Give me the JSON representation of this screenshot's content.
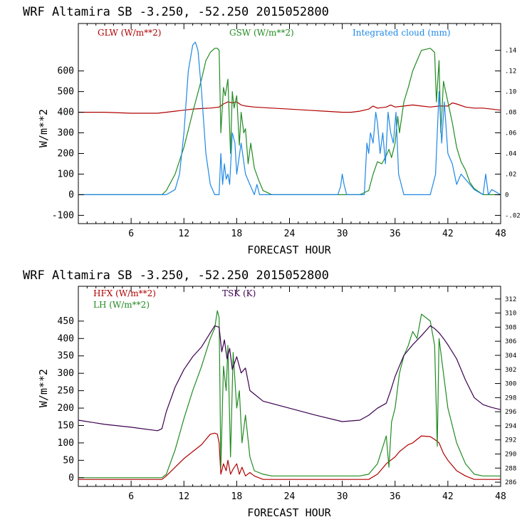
{
  "colors": {
    "glw": "#b00000",
    "gsw": "#228b22",
    "cloud": "#1e88e5",
    "hfx": "#b00000",
    "lh": "#228b22",
    "tsk": "#3c0050"
  },
  "chart_data": [
    {
      "type": "line",
      "title": "WRF  Altamira  SB  -3.250, -52.250  2015052800",
      "xlabel": "FORECAST HOUR",
      "ylabel": "W/m**2",
      "xlim": [
        0,
        48
      ],
      "ylim": [
        -140,
        830
      ],
      "x_ticks": [
        6,
        12,
        18,
        24,
        30,
        36,
        42,
        48
      ],
      "y_ticks": [
        -100,
        0,
        100,
        200,
        300,
        400,
        500,
        600
      ],
      "y2lim": [
        -0.028,
        0.166
      ],
      "y2_ticks": [
        -0.02,
        0,
        0.02,
        0.04,
        0.06,
        0.08,
        0.1,
        0.12,
        0.14
      ],
      "y2_tick_labels": [
        "-.02",
        "0",
        ".02",
        ".04",
        ".06",
        ".08",
        ".10",
        ".12",
        ".14"
      ],
      "legend": [
        {
          "label": "GLW (W/m**2)",
          "color_key": "glw"
        },
        {
          "label": "GSW (W/m**2)",
          "color_key": "gsw"
        },
        {
          "label": "Integrated cloud (mm)",
          "color_key": "cloud"
        }
      ],
      "series": [
        {
          "name": "GLW",
          "color_key": "glw",
          "axis": "left",
          "x": [
            0,
            3,
            6,
            9,
            10,
            11,
            12,
            13,
            14,
            15,
            16,
            16.5,
            17,
            17.5,
            18,
            18.5,
            19,
            20,
            22,
            24,
            26,
            28,
            30,
            31,
            32,
            33,
            33.5,
            34,
            35,
            35.5,
            36,
            37,
            38,
            39,
            40,
            41,
            42,
            42.5,
            43,
            44,
            45,
            46,
            47,
            48
          ],
          "values": [
            400,
            400,
            395,
            395,
            400,
            405,
            410,
            415,
            418,
            420,
            425,
            440,
            450,
            445,
            450,
            435,
            430,
            425,
            420,
            415,
            410,
            405,
            400,
            400,
            405,
            415,
            430,
            420,
            425,
            435,
            425,
            430,
            435,
            430,
            425,
            430,
            430,
            445,
            440,
            425,
            420,
            420,
            415,
            410
          ]
        },
        {
          "name": "GSW",
          "color_key": "gsw",
          "axis": "left",
          "x": [
            0,
            9,
            9.5,
            10,
            11,
            12,
            13,
            14,
            14.5,
            15,
            15.5,
            15.8,
            16,
            16.2,
            16.5,
            16.7,
            17,
            17.3,
            17.5,
            17.7,
            18,
            18.3,
            18.5,
            18.8,
            19,
            19.3,
            19.6,
            20,
            20.5,
            21,
            22,
            30,
            32,
            33,
            33.5,
            34,
            34.5,
            35,
            35.3,
            35.6,
            36,
            36.3,
            36.5,
            37,
            37.5,
            38,
            38.5,
            39,
            40,
            40.5,
            40.7,
            41,
            41.2,
            41.5,
            42,
            42.5,
            43,
            43.5,
            44,
            44.5,
            45,
            46,
            48
          ],
          "values": [
            0,
            0,
            0,
            20,
            100,
            230,
            400,
            560,
            650,
            690,
            710,
            710,
            700,
            300,
            520,
            480,
            560,
            200,
            500,
            420,
            480,
            240,
            400,
            300,
            320,
            150,
            250,
            130,
            70,
            20,
            0,
            0,
            0,
            20,
            100,
            160,
            150,
            190,
            220,
            180,
            250,
            380,
            300,
            450,
            520,
            600,
            650,
            700,
            710,
            690,
            450,
            650,
            300,
            550,
            450,
            350,
            230,
            160,
            120,
            60,
            30,
            0,
            0
          ]
        },
        {
          "name": "Integrated cloud",
          "color_key": "cloud",
          "axis": "right",
          "x": [
            0,
            10,
            11,
            11.5,
            12,
            12.5,
            13,
            13.3,
            13.6,
            14,
            14.5,
            15,
            15.5,
            16,
            16.2,
            16.4,
            16.6,
            16.8,
            17,
            17.2,
            17.5,
            17.8,
            18,
            18.5,
            19,
            19.5,
            20,
            20.3,
            20.6,
            21,
            29.5,
            29.8,
            30,
            30.2,
            30.5,
            32.5,
            32.8,
            33,
            33.2,
            33.5,
            33.8,
            34,
            34.3,
            34.6,
            34.9,
            35.2,
            35.5,
            35.8,
            36.1,
            36.4,
            36.7,
            37,
            39,
            40,
            40.3,
            40.6,
            40.8,
            41,
            41.3,
            41.6,
            42,
            42.5,
            43,
            43.5,
            44,
            44.5,
            45,
            46,
            46.3,
            46.6,
            47,
            48
          ],
          "values": [
            0,
            0,
            0.005,
            0.02,
            0.06,
            0.12,
            0.145,
            0.148,
            0.14,
            0.1,
            0.04,
            0.01,
            0,
            0,
            0.04,
            0.01,
            0.03,
            0.015,
            0.02,
            0.01,
            0.06,
            0.05,
            0.02,
            0.05,
            0.02,
            0.01,
            0,
            0.01,
            0,
            0,
            0,
            0.008,
            0.02,
            0.01,
            0,
            0,
            0.05,
            0.04,
            0.06,
            0.05,
            0.08,
            0.07,
            0.04,
            0.06,
            0.03,
            0.08,
            0.06,
            0.05,
            0.08,
            0.02,
            0.01,
            0,
            0,
            0,
            0.01,
            0.02,
            0.06,
            0.1,
            0.05,
            0.09,
            0.04,
            0.03,
            0.01,
            0.02,
            0.015,
            0.01,
            0.005,
            0,
            0.02,
            0,
            0.005,
            0
          ]
        }
      ]
    },
    {
      "type": "line",
      "title": "WRF  Altamira  SB  -3.250, -52.250  2015052800",
      "xlabel": "FORECAST HOUR",
      "ylabel": "W/m**2",
      "xlim": [
        0,
        48
      ],
      "ylim": [
        -25,
        550
      ],
      "x_ticks": [
        6,
        12,
        18,
        24,
        30,
        36,
        42,
        48
      ],
      "y_ticks": [
        0,
        50,
        100,
        150,
        200,
        250,
        300,
        350,
        400,
        450
      ],
      "y2lim": [
        285.4,
        313.8
      ],
      "y2_ticks": [
        286,
        288,
        290,
        292,
        294,
        296,
        298,
        300,
        302,
        304,
        306,
        308,
        310,
        312
      ],
      "y2_tick_labels": [
        "286",
        "288",
        "290",
        "292",
        "294",
        "296",
        "298",
        "300",
        "302",
        "304",
        "306",
        "308",
        "310",
        "312"
      ],
      "legend": [
        {
          "label": "HFX (W/m**2)",
          "color_key": "hfx"
        },
        {
          "label": "LH  (W/m**2)",
          "color_key": "lh"
        },
        {
          "label": "TSK (K)",
          "color_key": "tsk"
        }
      ],
      "series": [
        {
          "name": "HFX",
          "color_key": "hfx",
          "axis": "left",
          "x": [
            0,
            9,
            9.5,
            10,
            11,
            12,
            13,
            14,
            14.5,
            15,
            15.5,
            15.8,
            16,
            16.2,
            16.5,
            16.8,
            17,
            17.3,
            17.6,
            18,
            18.3,
            18.6,
            19,
            19.5,
            20,
            21,
            22,
            30,
            33,
            34,
            34.5,
            35,
            35.5,
            36,
            36.5,
            37,
            37.5,
            38,
            38.5,
            39,
            40,
            40.5,
            41,
            41.5,
            42,
            43,
            44,
            45,
            46,
            48
          ],
          "values": [
            -5,
            -5,
            -5,
            5,
            30,
            55,
            75,
            95,
            110,
            125,
            128,
            125,
            100,
            10,
            40,
            20,
            50,
            10,
            25,
            40,
            10,
            30,
            5,
            15,
            5,
            -5,
            -5,
            -5,
            -5,
            10,
            25,
            40,
            50,
            60,
            75,
            85,
            95,
            100,
            110,
            120,
            118,
            110,
            100,
            70,
            50,
            20,
            5,
            -5,
            -5,
            -5
          ]
        },
        {
          "name": "LH",
          "color_key": "lh",
          "axis": "left",
          "x": [
            0,
            9,
            9.5,
            10,
            11,
            12,
            13,
            14,
            14.5,
            15,
            15.5,
            15.8,
            16,
            16.2,
            16.5,
            16.8,
            17,
            17.3,
            17.6,
            18,
            18.3,
            18.6,
            19,
            19.5,
            20,
            21,
            22,
            30,
            32,
            33,
            34,
            34.5,
            35,
            35.3,
            35.6,
            36,
            36.5,
            37,
            37.5,
            38,
            38.5,
            39,
            40,
            40.5,
            40.8,
            41,
            41.5,
            42,
            42.5,
            43,
            44,
            45,
            46,
            48
          ],
          "values": [
            0,
            0,
            0,
            10,
            80,
            170,
            250,
            320,
            360,
            400,
            430,
            480,
            460,
            30,
            320,
            250,
            380,
            60,
            360,
            200,
            250,
            100,
            180,
            60,
            20,
            10,
            5,
            5,
            5,
            10,
            40,
            80,
            120,
            30,
            160,
            200,
            300,
            350,
            380,
            420,
            400,
            470,
            450,
            380,
            90,
            400,
            300,
            200,
            150,
            100,
            40,
            10,
            5,
            5
          ]
        },
        {
          "name": "TSK",
          "color_key": "tsk",
          "axis": "right",
          "x": [
            0,
            3,
            6,
            9,
            9.5,
            10,
            11,
            12,
            13,
            14,
            15,
            15.5,
            16,
            16.3,
            16.6,
            16.9,
            17.2,
            17.5,
            18,
            18.5,
            19,
            19.5,
            20,
            21,
            24,
            27,
            30,
            32,
            33,
            34,
            35,
            35.5,
            36,
            36.5,
            37,
            38,
            39,
            40,
            40.5,
            41,
            41.5,
            42,
            43,
            44,
            45,
            46,
            47,
            48
          ],
          "values": [
            294.8,
            294.2,
            293.8,
            293.3,
            293.6,
            296,
            299.5,
            302,
            303.8,
            305.2,
            307.2,
            308.2,
            308,
            304.5,
            306.2,
            303.5,
            305,
            302,
            303.8,
            301.5,
            302.2,
            299,
            298.5,
            297.5,
            296.5,
            295.5,
            294.6,
            294.8,
            295.5,
            296.5,
            297.2,
            299,
            301,
            302.5,
            304,
            305.5,
            306.8,
            308.2,
            307.8,
            307.2,
            306.4,
            305.5,
            303.5,
            300.5,
            298,
            297,
            296.6,
            296.3
          ]
        }
      ]
    }
  ]
}
